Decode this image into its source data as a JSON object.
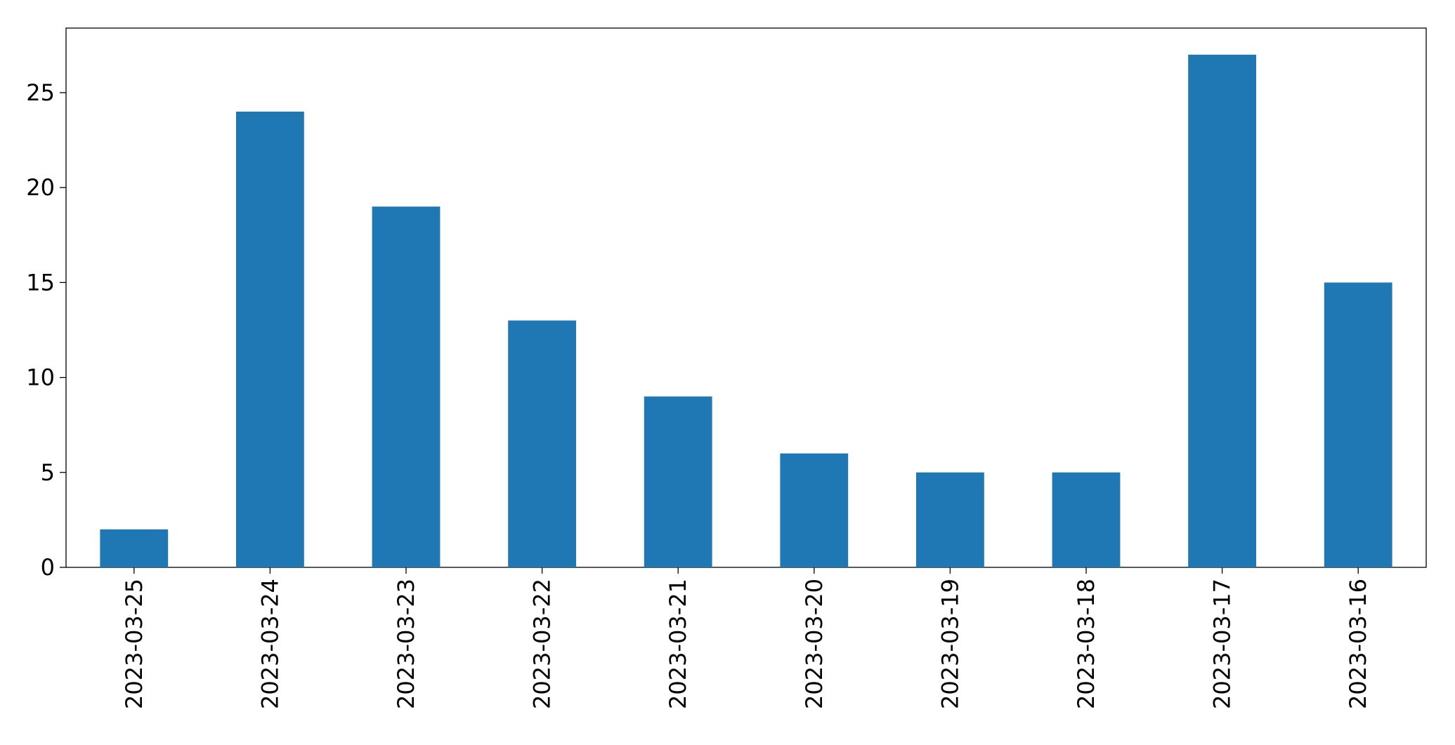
{
  "chart_data": {
    "type": "bar",
    "categories": [
      "2023-03-25",
      "2023-03-24",
      "2023-03-23",
      "2023-03-22",
      "2023-03-21",
      "2023-03-20",
      "2023-03-19",
      "2023-03-18",
      "2023-03-17",
      "2023-03-16"
    ],
    "values": [
      2,
      24,
      19,
      13,
      9,
      6,
      5,
      5,
      27,
      15
    ],
    "color": "#1f77b4",
    "ylim": [
      0,
      28.4
    ],
    "yticks": [
      0,
      5,
      10,
      15,
      20,
      25
    ],
    "grid": false
  }
}
